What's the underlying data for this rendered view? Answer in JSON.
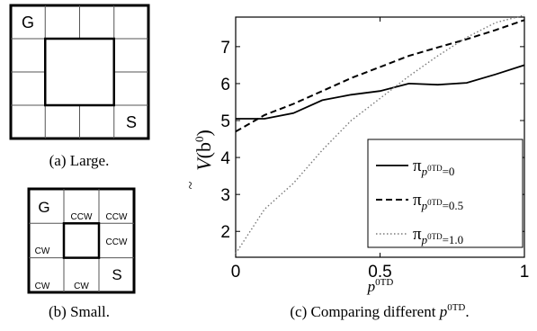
{
  "figure": {
    "large_grid": {
      "cell_labels": {
        "goal": "G",
        "start": "S"
      },
      "caption": "(a) Large."
    },
    "small_grid": {
      "cell_labels": {
        "goal": "G",
        "top_middle": "CCW",
        "top_right": "CCW",
        "middle_left": "CW",
        "middle_right": "CCW",
        "bottom_left": "CW",
        "bottom_middle": "CW",
        "start": "S"
      },
      "caption": "(b) Small."
    },
    "chart_caption": {
      "prefix": "(c) Comparing different ",
      "var": "p",
      "sup": "0TD",
      "suffix": "."
    }
  },
  "chart_data": {
    "type": "line",
    "xlabel": {
      "var": "p",
      "sup": "0TD"
    },
    "ylabel": {
      "main": "V",
      "arg": "(b",
      "arg_sup": "0",
      "arg_close": ")",
      "accent": "~"
    },
    "xlim": [
      0,
      1
    ],
    "ylim": [
      1.3,
      7.8
    ],
    "xticks": [
      "0",
      "0.5",
      "1"
    ],
    "yticks": [
      "2",
      "3",
      "4",
      "5",
      "6",
      "7"
    ],
    "grid": false,
    "legend_position": "bottom-right",
    "series": [
      {
        "name": "π_{p^{0TD}=0}",
        "legend_base": "π",
        "legend_sub": "p",
        "legend_sub_sup": "0TD",
        "legend_sub_tail": "=0",
        "style": "solid",
        "color": "#000000",
        "x": [
          0,
          0.1,
          0.2,
          0.3,
          0.4,
          0.5,
          0.6,
          0.7,
          0.8,
          0.9,
          1.0
        ],
        "y": [
          5.05,
          5.05,
          5.2,
          5.55,
          5.7,
          5.8,
          6.0,
          5.97,
          6.02,
          6.25,
          6.5
        ]
      },
      {
        "name": "π_{p^{0TD}=0.5}",
        "legend_base": "π",
        "legend_sub": "p",
        "legend_sub_sup": "0TD",
        "legend_sub_tail": "=0.5",
        "style": "dashed",
        "color": "#000000",
        "x": [
          0,
          0.1,
          0.2,
          0.3,
          0.4,
          0.5,
          0.6,
          0.7,
          0.8,
          0.9,
          1.0
        ],
        "y": [
          4.7,
          5.15,
          5.45,
          5.8,
          6.15,
          6.45,
          6.75,
          6.98,
          7.2,
          7.45,
          7.72
        ]
      },
      {
        "name": "π_{p^{0TD}=1.0}",
        "legend_base": "π",
        "legend_sub": "p",
        "legend_sub_sup": "0TD",
        "legend_sub_tail": "=1.0",
        "style": "dotted",
        "color": "#7a7a7a",
        "x": [
          0,
          0.1,
          0.2,
          0.3,
          0.4,
          0.5,
          0.6,
          0.7,
          0.8,
          0.9,
          1.0
        ],
        "y": [
          1.4,
          2.6,
          3.3,
          4.2,
          5.0,
          5.6,
          6.2,
          6.75,
          7.25,
          7.65,
          7.85
        ]
      }
    ]
  }
}
